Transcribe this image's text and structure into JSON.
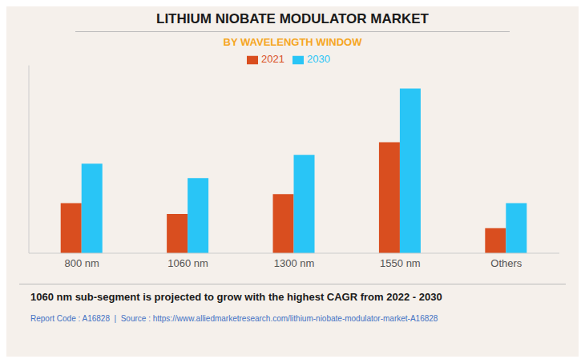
{
  "chart_data": {
    "type": "bar",
    "title": "LITHIUM NIOBATE MODULATOR MARKET",
    "subtitle": "BY WAVELENGTH WINDOW",
    "categories": [
      "800 nm",
      "1060 nm",
      "1300 nm",
      "1550 nm",
      "Others"
    ],
    "series": [
      {
        "name": "2021",
        "color": "#d94e1f",
        "values": [
          0.28,
          0.22,
          0.33,
          0.62,
          0.14
        ]
      },
      {
        "name": "2030",
        "color": "#29c5f6",
        "values": [
          0.5,
          0.42,
          0.55,
          0.92,
          0.28
        ]
      }
    ],
    "ylim": [
      0,
      1.05
    ],
    "yticks": [],
    "grid": false,
    "legend": "top",
    "tick_labels": "x",
    "annotations": [
      "1060 nm sub-segment is projected to grow with the highest CAGR from 2022 - 2030",
      "Report Code : A16828  |  Source : https://www.alliedmarketresearch.com/lithium-niobate-modulator-market-A16828"
    ]
  }
}
